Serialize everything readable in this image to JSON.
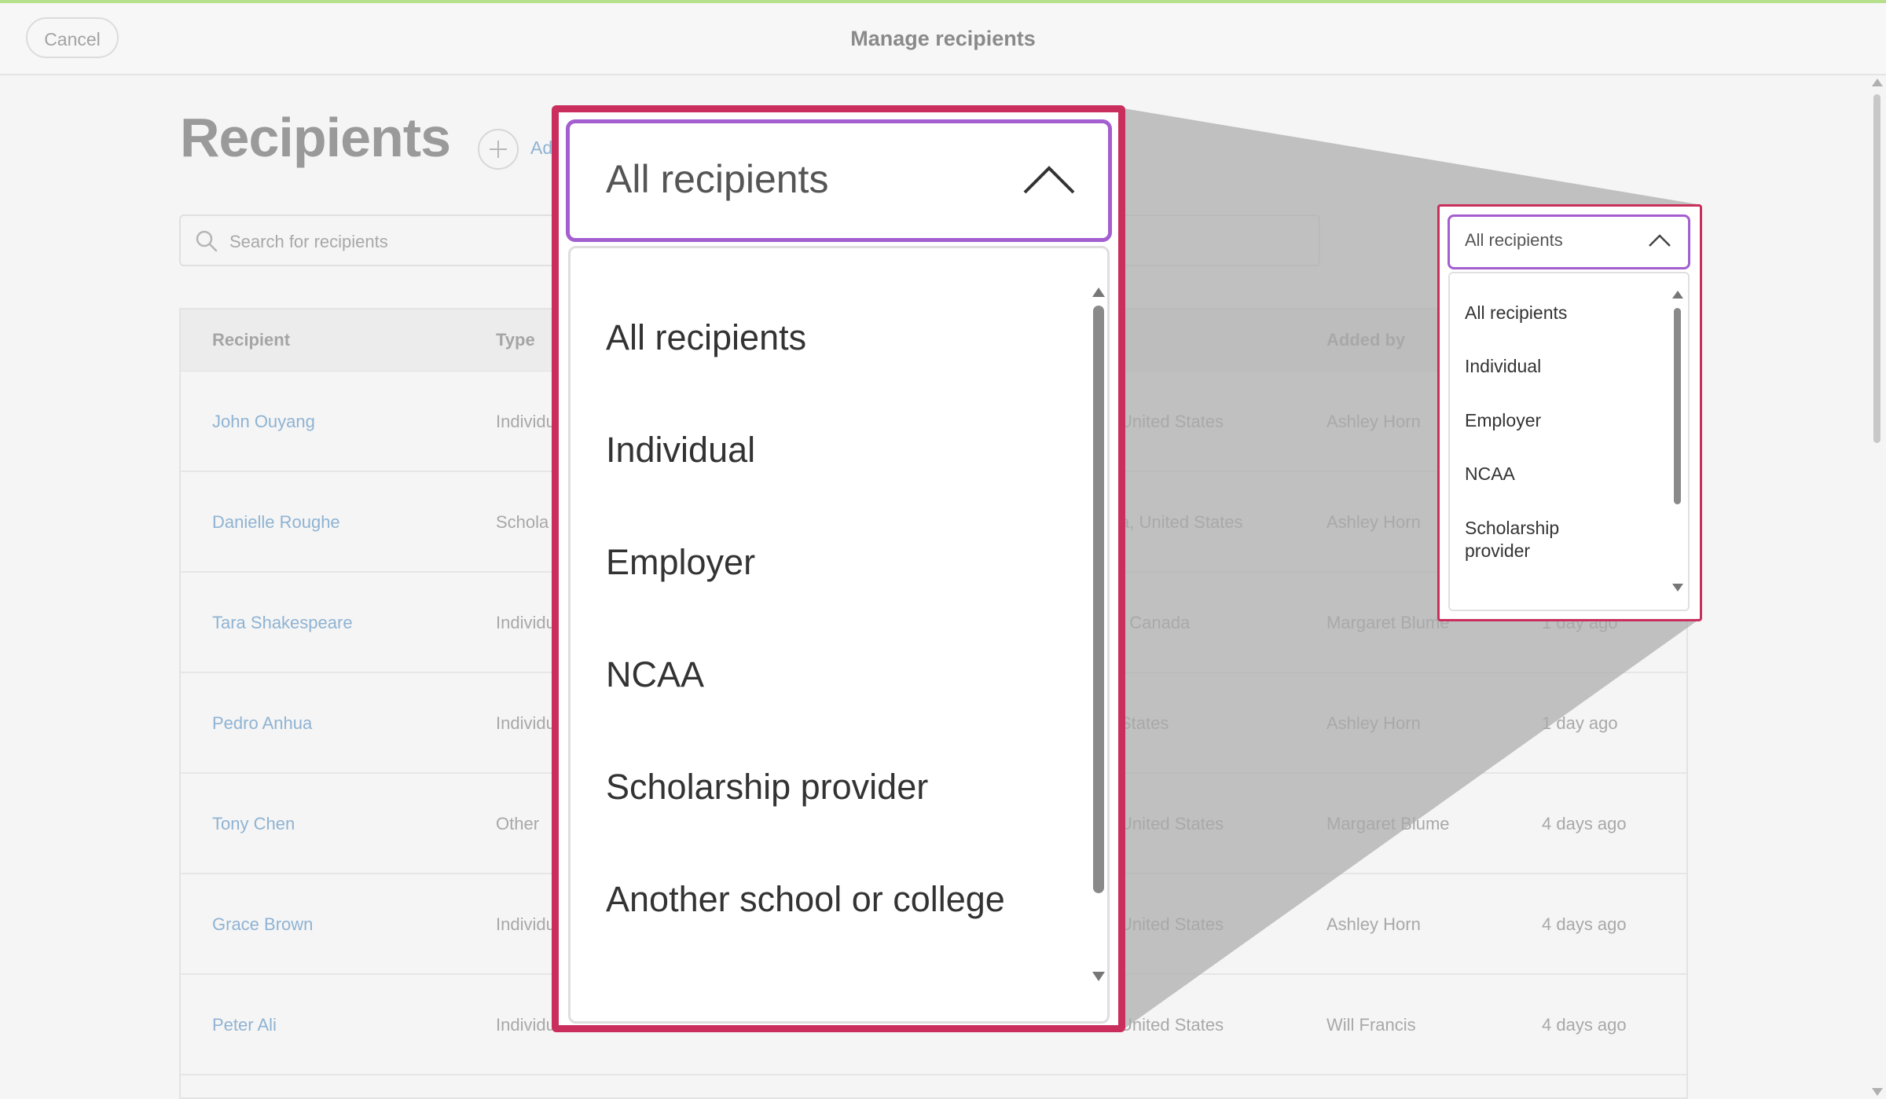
{
  "header": {
    "cancel_label": "Cancel",
    "title": "Manage recipients"
  },
  "page": {
    "heading": "Recipients",
    "add_label": "Ad"
  },
  "search": {
    "placeholder": "Search for recipients"
  },
  "table": {
    "columns": {
      "recipient": "Recipient",
      "type": "Type",
      "added_by": "Added by"
    },
    "rows": [
      {
        "name": "John Ouyang",
        "type": "Individu",
        "location": "United States",
        "added_by": "Ashley Horn",
        "added": ""
      },
      {
        "name": "Danielle Roughe",
        "type": "Schola",
        "location": "a, United States",
        "added_by": "Ashley Horn",
        "added": ""
      },
      {
        "name": "Tara Shakespeare",
        "type": "Individu",
        "location": ", Canada",
        "added_by": "Margaret Blume",
        "added": "1 day ago"
      },
      {
        "name": "Pedro Anhua",
        "type": "Individu",
        "location": "States",
        "added_by": "Ashley Horn",
        "added": "1 day ago"
      },
      {
        "name": "Tony Chen",
        "type": "Other",
        "location": "United States",
        "added_by": "Margaret Blume",
        "added": "4 days ago"
      },
      {
        "name": "Grace Brown",
        "type": "Individu",
        "location": "United States",
        "added_by": "Ashley Horn",
        "added": "4 days ago"
      },
      {
        "name": "Peter Ali",
        "type": "Individu",
        "location": "United States",
        "added_by": "Will Francis",
        "added": "4 days ago"
      }
    ]
  },
  "filter_dropdown": {
    "selected": "All recipients",
    "options": [
      "All recipients",
      "Individual",
      "Employer",
      "NCAA",
      "Scholarship provider",
      "Another school or college"
    ]
  },
  "colors": {
    "highlight_frame": "#c92e5c",
    "focus_border": "#a35ecf",
    "link": "#8fb3d3"
  }
}
